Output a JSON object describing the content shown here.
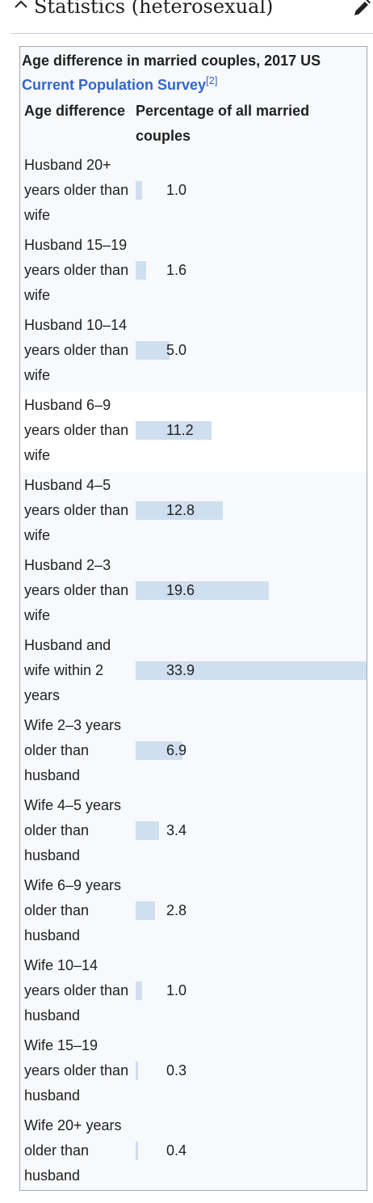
{
  "section": {
    "title": "Statistics (heterosexual)",
    "collapse_icon": "chevron-up-icon",
    "edit_icon": "pencil-icon"
  },
  "table": {
    "caption_text": "Age difference in married couples, 2017 US",
    "caption_link": "Current Population Survey",
    "caption_ref": "[2]",
    "header_age": "Age difference",
    "header_pct": "Percentage of all married couples",
    "bar_color": "#cfdff0",
    "highlight_row_index": 3,
    "rows": [
      {
        "label": "Husband 20+ years older than wife",
        "value": "1.0"
      },
      {
        "label": "Husband 15–19 years older than wife",
        "value": "1.6"
      },
      {
        "label": "Husband 10–14 years older than wife",
        "value": "5.0"
      },
      {
        "label": "Husband 6–9 years older than wife",
        "value": "11.2"
      },
      {
        "label": "Husband 4–5 years older than wife",
        "value": "12.8"
      },
      {
        "label": "Husband 2–3 years older than wife",
        "value": "19.6"
      },
      {
        "label": "Husband and wife within 2 years",
        "value": "33.9"
      },
      {
        "label": "Wife 2–3 years older than husband",
        "value": "6.9"
      },
      {
        "label": "Wife 4–5 years older than husband",
        "value": "3.4"
      },
      {
        "label": "Wife 6–9 years older than husband",
        "value": "2.8"
      },
      {
        "label": "Wife 10–14 years older than husband",
        "value": "1.0"
      },
      {
        "label": "Wife 15–19 years older than husband",
        "value": "0.3"
      },
      {
        "label": "Wife 20+ years older than husband",
        "value": "0.4"
      }
    ]
  }
}
